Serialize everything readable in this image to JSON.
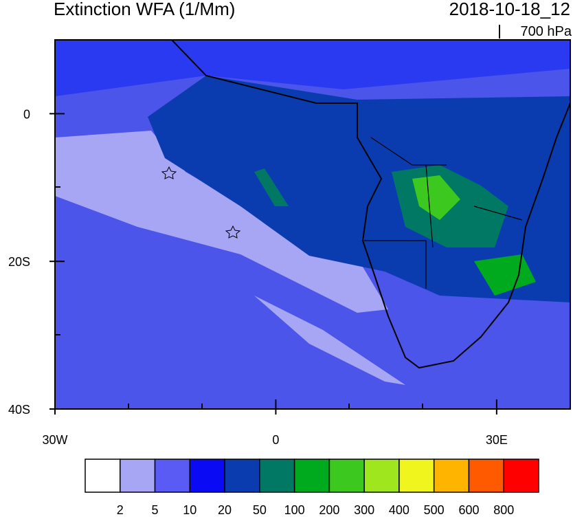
{
  "map": {
    "title": "Extinction WFA (1/Mm)",
    "time": "2018-10-18_12",
    "level": "700 hPa",
    "xlim": [
      -30,
      40
    ],
    "ylim": [
      -40,
      10
    ],
    "xticks": [
      {
        "value": -30,
        "label": "30W"
      },
      0,
      {
        "value": 30,
        "label": "30E"
      }
    ],
    "yticks": [
      0,
      {
        "value": -20,
        "label": "20S"
      },
      {
        "value": -40,
        "label": "40S"
      }
    ],
    "colorbar": {
      "levels": [
        2,
        5,
        10,
        20,
        50,
        100,
        200,
        300,
        400,
        500,
        600,
        800
      ],
      "colors": [
        "#ffffff",
        "#a6a6f5",
        "#5a5af5",
        "#0a0af5",
        "#0a3cb0",
        "#007864",
        "#00aa1e",
        "#3cc81e",
        "#a0e61e",
        "#f0f51e",
        "#ffb400",
        "#ff5a00",
        "#ff0000"
      ]
    }
  }
}
